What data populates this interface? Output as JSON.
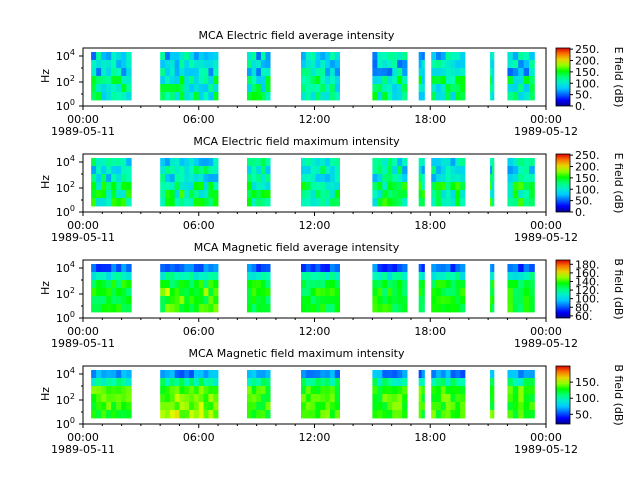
{
  "chart_data": [
    {
      "type": "heatmap",
      "title": "MCA  Electric field average intensity",
      "ylabel": "Hz",
      "colorbar_label": "E field (dB)",
      "colorbar_ticks": [
        "250.",
        "200.",
        "150.",
        "100.",
        "50.",
        "0."
      ],
      "colorbar_range": [
        0,
        255
      ],
      "x_ticks": [
        "00:00",
        "06:00",
        "12:00",
        "18:00",
        "00:00"
      ],
      "x_start_date": "1989-05-11",
      "x_end_date": "1989-05-12",
      "y_ticks": [
        "10^4",
        "10^2",
        "10^0"
      ],
      "yscale": "log",
      "ylim": [
        1,
        50000
      ]
    },
    {
      "type": "heatmap",
      "title": "MCA  Electric field maximum intensity",
      "ylabel": "Hz",
      "colorbar_label": "E field (dB)",
      "colorbar_ticks": [
        "250.",
        "200.",
        "150.",
        "100.",
        "50.",
        "0."
      ],
      "colorbar_range": [
        0,
        255
      ],
      "x_ticks": [
        "00:00",
        "06:00",
        "12:00",
        "18:00",
        "00:00"
      ],
      "x_start_date": "1989-05-11",
      "x_end_date": "1989-05-12",
      "y_ticks": [
        "10^4",
        "10^2",
        "10^0"
      ],
      "yscale": "log",
      "ylim": [
        1,
        50000
      ]
    },
    {
      "type": "heatmap",
      "title": "MCA  Magnetic field average intensity",
      "ylabel": "Hz",
      "colorbar_label": "B field (dB)",
      "colorbar_ticks": [
        "180.",
        "160.",
        "140.",
        "120.",
        "100.",
        "80.",
        "60."
      ],
      "colorbar_range": [
        55,
        190
      ],
      "x_ticks": [
        "00:00",
        "06:00",
        "12:00",
        "18:00",
        "00:00"
      ],
      "x_start_date": "1989-05-11",
      "x_end_date": "1989-05-12",
      "y_ticks": [
        "10^4",
        "10^2",
        "10^0"
      ],
      "yscale": "log",
      "ylim": [
        1,
        50000
      ]
    },
    {
      "type": "heatmap",
      "title": "MCA  Magnetic field maximum intensity",
      "ylabel": "Hz",
      "colorbar_label": "B field (dB)",
      "colorbar_ticks": [
        "150.",
        "100.",
        "50."
      ],
      "colorbar_range": [
        20,
        200
      ],
      "x_ticks": [
        "00:00",
        "06:00",
        "12:00",
        "18:00",
        "00:00"
      ],
      "x_start_date": "1989-05-11",
      "x_end_date": "1989-05-12",
      "y_ticks": [
        "10^4",
        "10^2",
        "10^0"
      ],
      "yscale": "log",
      "ylim": [
        1,
        50000
      ]
    }
  ],
  "data_time_blocks_hours": [
    [
      0.42,
      2.5
    ],
    [
      4.0,
      7.0
    ],
    [
      8.5,
      9.7
    ],
    [
      11.3,
      13.3
    ],
    [
      15.0,
      16.8
    ],
    [
      17.4,
      17.7
    ],
    [
      18.05,
      19.8
    ],
    [
      21.1,
      21.3
    ],
    [
      22.0,
      23.4
    ]
  ]
}
